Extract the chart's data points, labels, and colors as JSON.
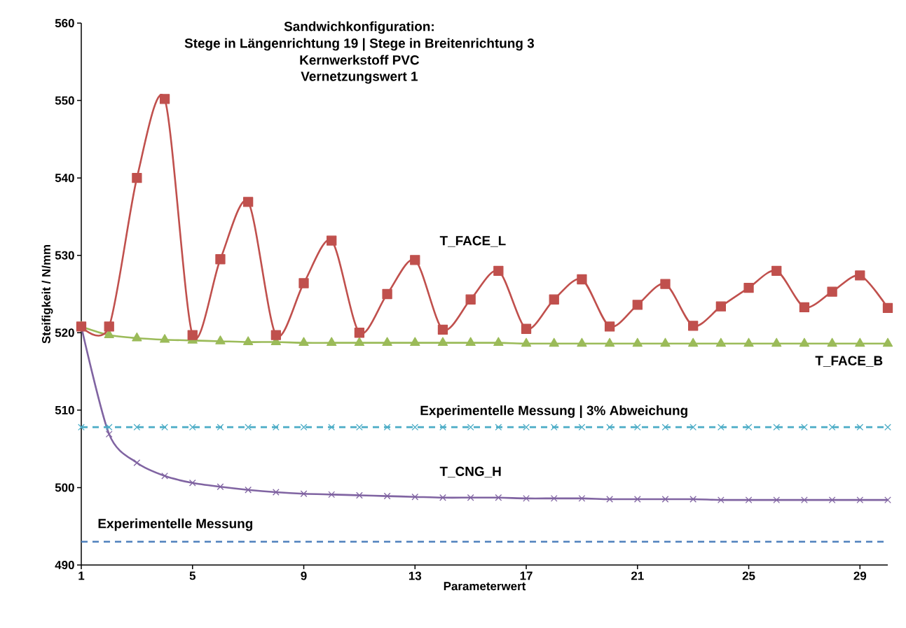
{
  "chart_data": {
    "type": "line",
    "title": "Sandwichkonfiguration:",
    "subtitle": "Stege in Längenrichtung 19 | Stege in Breitenrichtung 3",
    "annotations": [
      "Kernwerkstoff PVC",
      "Vernetzungswert 1"
    ],
    "xlabel": "Parameterwert",
    "ylabel": "Steifigkeit / N/mm",
    "x": [
      1,
      2,
      3,
      4,
      5,
      6,
      7,
      8,
      9,
      10,
      11,
      12,
      13,
      14,
      15,
      16,
      17,
      18,
      19,
      20,
      21,
      22,
      23,
      24,
      25,
      26,
      27,
      28,
      29,
      30
    ],
    "xlim": [
      1,
      30
    ],
    "xticks": [
      1,
      5,
      9,
      13,
      17,
      21,
      25,
      29
    ],
    "ylim": [
      490,
      560
    ],
    "yticks": [
      490,
      500,
      510,
      520,
      530,
      540,
      550,
      560
    ],
    "grid": false,
    "legend": false,
    "series": [
      {
        "name": "T_FACE_L",
        "color": "#c0504d",
        "marker": "square",
        "line_style": "solid",
        "values": [
          520.8,
          520.8,
          540.0,
          550.2,
          519.7,
          529.5,
          536.9,
          519.7,
          526.4,
          531.9,
          520.0,
          525.0,
          529.4,
          520.4,
          524.3,
          528.0,
          520.5,
          524.3,
          526.9,
          520.8,
          523.6,
          526.3,
          520.9,
          523.4,
          525.8,
          528.0,
          523.3,
          525.3,
          527.4,
          523.2
        ]
      },
      {
        "name": "T_FACE_B",
        "color": "#9bbb59",
        "marker": "triangle",
        "line_style": "solid",
        "values": [
          520.8,
          519.7,
          519.3,
          519.1,
          519.0,
          518.9,
          518.8,
          518.8,
          518.7,
          518.7,
          518.7,
          518.7,
          518.7,
          518.7,
          518.7,
          518.7,
          518.6,
          518.6,
          518.6,
          518.6,
          518.6,
          518.6,
          518.6,
          518.6,
          518.6,
          518.6,
          518.6,
          518.6,
          518.6,
          518.6
        ]
      },
      {
        "name": "Experimentelle Messung | 3% Abweichung",
        "color": "#4bacc6",
        "marker": "cross",
        "line_style": "dashed",
        "values": [
          507.8,
          507.8,
          507.8,
          507.8,
          507.8,
          507.8,
          507.8,
          507.8,
          507.8,
          507.8,
          507.8,
          507.8,
          507.8,
          507.8,
          507.8,
          507.8,
          507.8,
          507.8,
          507.8,
          507.8,
          507.8,
          507.8,
          507.8,
          507.8,
          507.8,
          507.8,
          507.8,
          507.8,
          507.8,
          507.8
        ]
      },
      {
        "name": "T_CNG_H",
        "color": "#8064a2",
        "marker": "cross",
        "line_style": "solid",
        "values": [
          520.8,
          506.9,
          503.2,
          501.5,
          500.6,
          500.1,
          499.7,
          499.4,
          499.2,
          499.1,
          499.0,
          498.9,
          498.8,
          498.7,
          498.7,
          498.7,
          498.6,
          498.6,
          498.6,
          498.5,
          498.5,
          498.5,
          498.5,
          498.4,
          498.4,
          498.4,
          498.4,
          498.4,
          498.4,
          498.4
        ]
      },
      {
        "name": "Experimentelle Messung",
        "color": "#4f81bd",
        "marker": "none",
        "line_style": "dashed",
        "values": [
          493.0,
          493.0,
          493.0,
          493.0,
          493.0,
          493.0,
          493.0,
          493.0,
          493.0,
          493.0,
          493.0,
          493.0,
          493.0,
          493.0,
          493.0,
          493.0,
          493.0,
          493.0,
          493.0,
          493.0,
          493.0,
          493.0,
          493.0,
          493.0,
          493.0,
          493.0,
          493.0,
          493.0,
          493.0,
          493.0
        ]
      }
    ]
  }
}
